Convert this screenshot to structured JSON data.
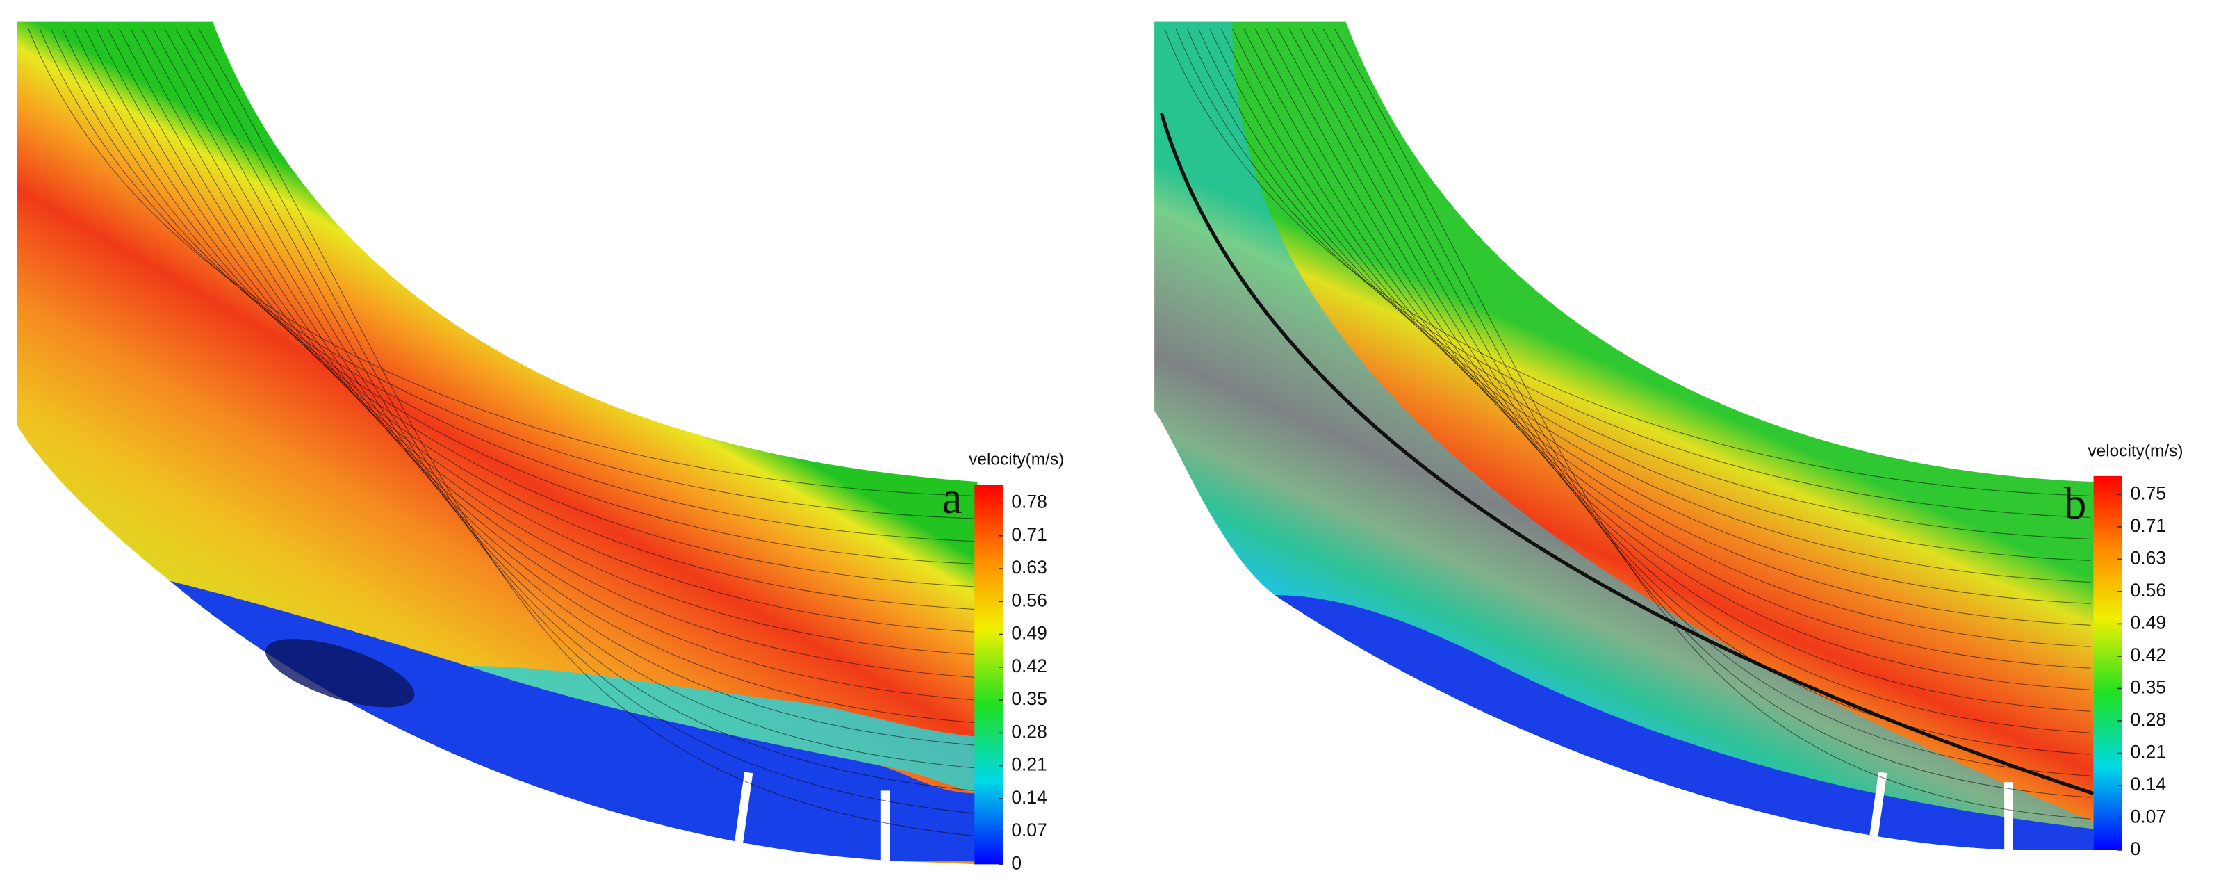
{
  "panels": [
    {
      "label": "a",
      "colorbar": {
        "title": "velocity(m/s)",
        "ticks": [
          0.78,
          0.71,
          0.63,
          0.56,
          0.49,
          0.42,
          0.35,
          0.28,
          0.21,
          0.14,
          0.07,
          0
        ]
      }
    },
    {
      "label": "b",
      "colorbar": {
        "title": "velocity(m/s)",
        "ticks": [
          0.75,
          0.71,
          0.63,
          0.56,
          0.49,
          0.42,
          0.35,
          0.28,
          0.21,
          0.14,
          0.07,
          0
        ]
      }
    }
  ]
}
